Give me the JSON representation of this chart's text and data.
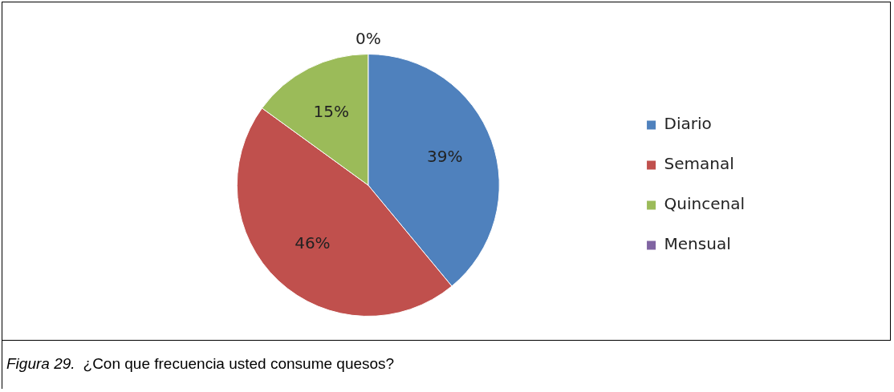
{
  "chart_data": {
    "type": "pie",
    "categories": [
      "Diario",
      "Semanal",
      "Quincenal",
      "Mensual"
    ],
    "values": [
      39,
      46,
      15,
      0
    ],
    "colors": [
      "#4f81bd",
      "#c0504d",
      "#9bbb59",
      "#8064a2"
    ],
    "value_labels": [
      "39%",
      "46%",
      "15%",
      "0%"
    ],
    "legend": "right",
    "annotations": [
      "Figura 29.",
      "¿Con que frecuencia usted consume quesos?"
    ]
  }
}
